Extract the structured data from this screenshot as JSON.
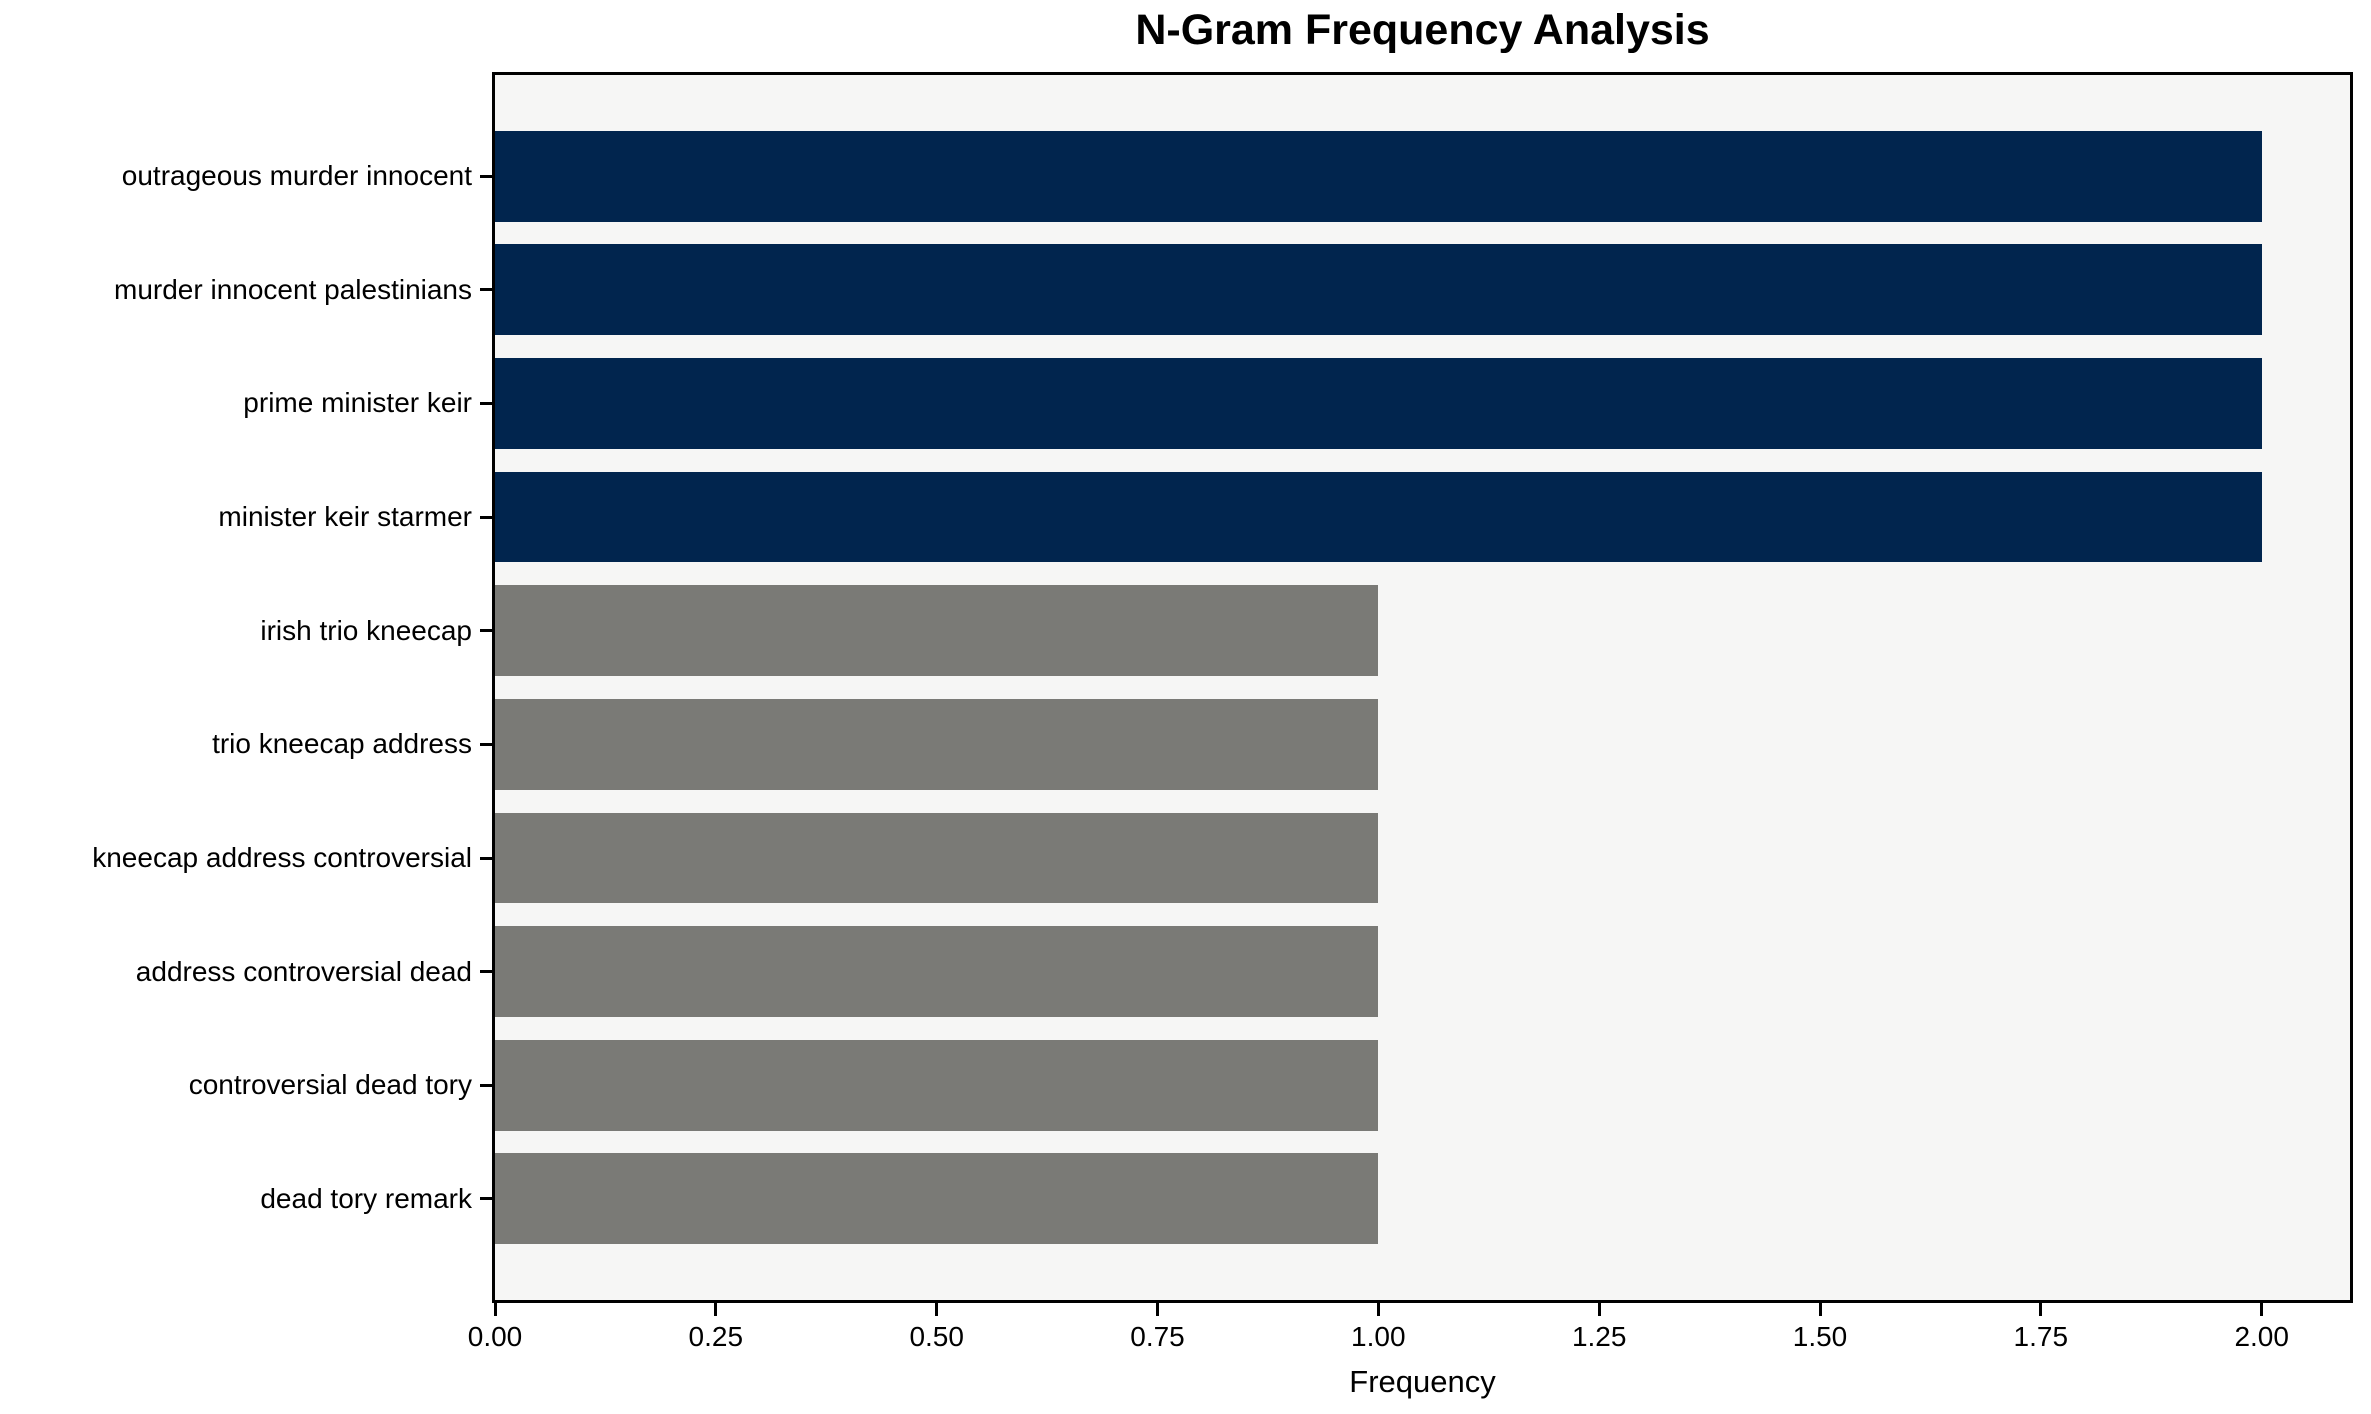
{
  "chart_data": {
    "type": "bar",
    "orientation": "horizontal",
    "title": "N-Gram Frequency Analysis",
    "xlabel": "Frequency",
    "ylabel": "",
    "categories": [
      "outrageous murder innocent",
      "murder innocent palestinians",
      "prime minister keir",
      "minister keir starmer",
      "irish trio kneecap",
      "trio kneecap address",
      "kneecap address controversial",
      "address controversial dead",
      "controversial dead tory",
      "dead tory remark"
    ],
    "values": [
      2,
      2,
      2,
      2,
      1,
      1,
      1,
      1,
      1,
      1
    ],
    "bar_colors": [
      "#01254E",
      "#01254E",
      "#01254E",
      "#01254E",
      "#7A7A76",
      "#7A7A76",
      "#7A7A76",
      "#7A7A76",
      "#7A7A76",
      "#7A7A76"
    ],
    "xticks": [
      0,
      0.25,
      0.5,
      0.75,
      1.0,
      1.25,
      1.5,
      1.75,
      2.0
    ],
    "xtick_labels": [
      "0.00",
      "0.25",
      "0.50",
      "0.75",
      "1.00",
      "1.25",
      "1.50",
      "1.75",
      "2.00"
    ],
    "xlim": [
      0,
      2.1
    ],
    "grid": false,
    "legend": null,
    "colors": {
      "navy": "#01254E",
      "gray": "#7A7A76",
      "plot_background": "#F6F6F5",
      "frame": "#000000",
      "text": "#000000"
    }
  }
}
